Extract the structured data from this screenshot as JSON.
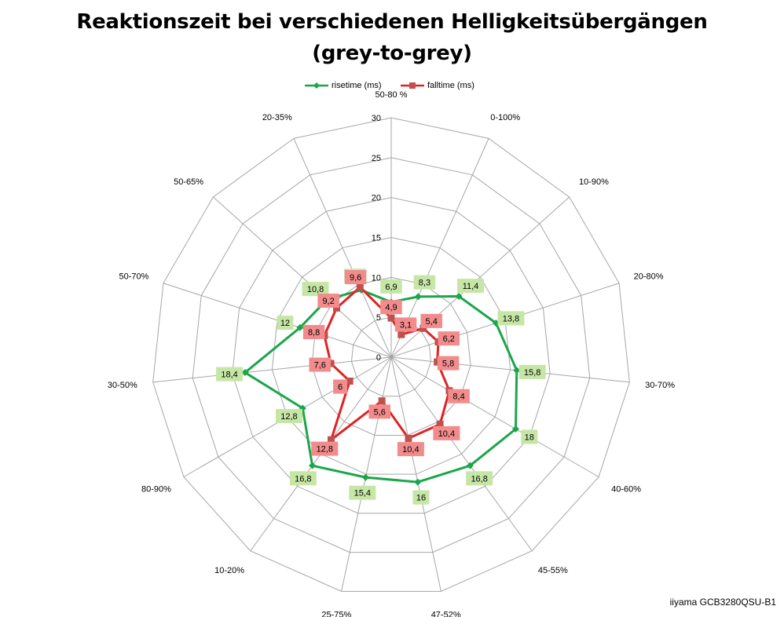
{
  "chart_data": {
    "type": "radar",
    "title_lines": [
      "Reaktionszeit bei verschiedenen Helligkeitsübergängen",
      "(grey-to-grey)"
    ],
    "categories": [
      "50-80 %",
      "0-100%",
      "10-90%",
      "20-80%",
      "30-70%",
      "40-60%",
      "45-55%",
      "47-52%",
      "25-75%",
      "10-20%",
      "80-90%",
      "30-50%",
      "50-70%",
      "50-65%",
      "20-35%"
    ],
    "r_ticks": [
      "0",
      "5",
      "10",
      "15",
      "20",
      "25",
      "30"
    ],
    "rlim": [
      0,
      30
    ],
    "series": [
      {
        "name": "risetime (ms)",
        "color": "#1aa64a",
        "label_bg": "#c6e6a6",
        "marker": "diamond",
        "values": [
          6.9,
          8.3,
          11.4,
          13.8,
          15.8,
          18,
          16.8,
          16,
          15.4,
          16.8,
          12.8,
          18.4,
          12,
          10.8,
          9.2
        ],
        "labels": [
          "6,9",
          "8,3",
          "11,4",
          "13,8",
          "15,8",
          "18",
          "16,8",
          "16",
          "15,4",
          "16,8",
          "12,8",
          "18,4",
          "12",
          "10,8",
          "9,2"
        ]
      },
      {
        "name": "falltime (ms)",
        "color": "#e02222",
        "label_bg": "#f28c8c",
        "marker": "square",
        "values": [
          4.9,
          3.1,
          5.4,
          6.2,
          5.8,
          8.4,
          10.4,
          10.4,
          5.6,
          12.8,
          6,
          7.6,
          8.8,
          9.2,
          9.6
        ],
        "labels": [
          "4,9",
          "3,1",
          "5,4",
          "6,2",
          "5,8",
          "8,4",
          "10,4",
          "10,4",
          "5,6",
          "12,8",
          "6",
          "7,6",
          "8,8",
          "9,2",
          "9,6"
        ]
      }
    ],
    "grid": true,
    "legend_position": "top-center",
    "colors": {
      "grid": "#a6a6a6",
      "label_text": "#000000"
    }
  },
  "footer_note": "iiyama GCB3280QSU-B1"
}
